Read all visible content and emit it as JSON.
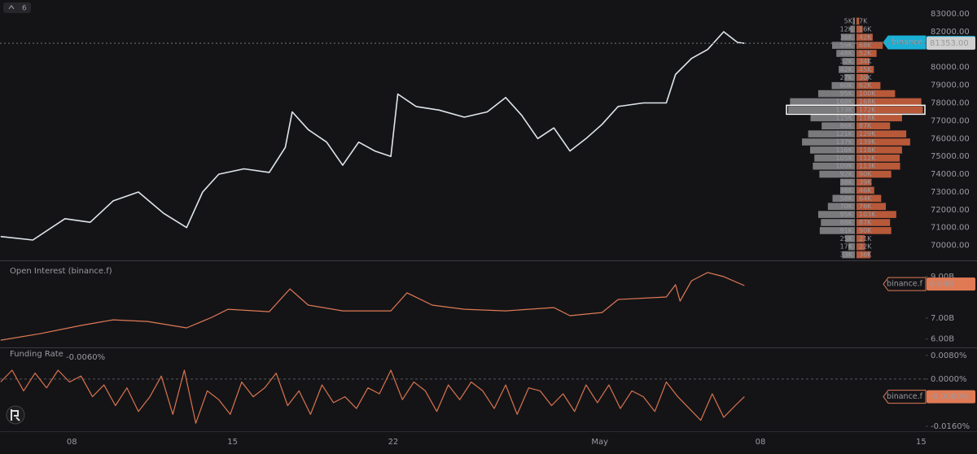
{
  "toolbar": {
    "label": "6"
  },
  "chart_data": [
    {
      "type": "line",
      "xlim": [
        3.87,
        44.2
      ],
      "ylim": [
        69160,
        83780
      ],
      "yticks": [
        {
          "value": 70000,
          "label": "70000.00"
        },
        {
          "value": 71000,
          "label": "71000.00"
        },
        {
          "value": 72000,
          "label": "72000.00"
        },
        {
          "value": 73000,
          "label": "73000.00"
        },
        {
          "value": 74000,
          "label": "74000.00"
        },
        {
          "value": 75000,
          "label": "75000.00"
        },
        {
          "value": 76000,
          "label": "76000.00"
        },
        {
          "value": 77000,
          "label": "77000.00"
        },
        {
          "value": 78000,
          "label": "78000.00"
        },
        {
          "value": 79000,
          "label": "79000.00"
        },
        {
          "value": 80000,
          "label": "80000.00"
        },
        {
          "value": 82000,
          "label": "82000.00"
        },
        {
          "value": 83000,
          "label": "83000.00"
        }
      ],
      "series": [
        {
          "name": "binance",
          "color": "#dfe6ea",
          "x": [
            3.9,
            5.3,
            6.7,
            7.8,
            8.8,
            9.9,
            11.0,
            12.0,
            12.7,
            13.4,
            14.5,
            15.6,
            16.3,
            16.6,
            17.3,
            18.1,
            18.8,
            19.5,
            20.2,
            20.9,
            21.2,
            22.0,
            23.0,
            24.1,
            25.1,
            25.9,
            26.6,
            27.3,
            28.0,
            28.7,
            29.4,
            30.1,
            30.8,
            31.9,
            32.9,
            33.3,
            34.0,
            34.7,
            35.4,
            36.0,
            36.3
          ],
          "values": [
            70500,
            70300,
            71500,
            71300,
            72500,
            73000,
            71800,
            71000,
            73000,
            74000,
            74300,
            74100,
            75500,
            77500,
            76500,
            75800,
            74500,
            75800,
            75300,
            75000,
            78500,
            77800,
            77600,
            77200,
            77500,
            78300,
            77300,
            76000,
            76600,
            75300,
            76000,
            76800,
            77800,
            78000,
            78000,
            79600,
            80500,
            81000,
            82000,
            81400,
            81350
          ]
        }
      ],
      "markers": [
        {
          "name": "binance",
          "value": 81396.33,
          "color": "#1ab0d6"
        },
        {
          "value": 81353,
          "label": "81353.00",
          "color": "#d0d0d0"
        }
      ],
      "order_book": {
        "highlight": 11,
        "bids": {
          "color": "#7a7a7c",
          "values": [
            5000,
            12000,
            36000,
            59000,
            48000,
            32000,
            42000,
            27000,
            60000,
            95000,
            168000,
            173000,
            115000,
            86000,
            121000,
            137000,
            116000,
            105000,
            109000,
            92000,
            38000,
            38000,
            58000,
            70000,
            95000,
            88000,
            91000,
            25000,
            17000,
            33000
          ],
          "value_labels": [
            "5K",
            "12K",
            "36K",
            "59K",
            "48K",
            "32K",
            "42K",
            "27K",
            "60K",
            "95K",
            "168K",
            "173K",
            "115K",
            "86K",
            "121K",
            "137K",
            "116K",
            "105K",
            "109K",
            "92K",
            "38K",
            "38K",
            "58K",
            "70K",
            "95K",
            "88K",
            "91K",
            "25K",
            "17K",
            "33K"
          ]
        },
        "asks": {
          "color": "#b8593a",
          "values": [
            7000,
            16000,
            42000,
            68000,
            52000,
            34000,
            45000,
            30000,
            62000,
            100000,
            168000,
            172000,
            118000,
            87000,
            129000,
            139000,
            118000,
            112000,
            113000,
            90000,
            39000,
            46000,
            64000,
            76000,
            103000,
            87000,
            90000,
            21000,
            22000,
            36000
          ],
          "value_labels": [
            "7K",
            "16K",
            "42K",
            "68K",
            "52K",
            "34K",
            "45K",
            "30K",
            "62K",
            "100K",
            "168K",
            "172K",
            "118K",
            "87K",
            "129K",
            "139K",
            "118K",
            "112K",
            "113K",
            "90K",
            "39K",
            "46K",
            "64K",
            "76K",
            "103K",
            "87K",
            "90K",
            "21K",
            "22K",
            "36K"
          ]
        }
      }
    },
    {
      "type": "line",
      "title": "Open Interest (binance.f)",
      "xlim": [
        3.87,
        44.2
      ],
      "ylim": [
        5.63,
        9.47
      ],
      "yticks": [
        {
          "value": 6,
          "label": "6.00B"
        },
        {
          "value": 7,
          "label": "7.00B"
        },
        {
          "value": 9,
          "label": "9.00B"
        }
      ],
      "series": [
        {
          "name": "binance.f",
          "color": "#e07a55",
          "x": [
            3.9,
            5.6,
            7.4,
            8.8,
            10.3,
            12.0,
            13.1,
            13.8,
            15.6,
            16.5,
            17.3,
            18.8,
            20.9,
            21.6,
            22.7,
            24.1,
            25.9,
            28.0,
            28.7,
            30.1,
            30.8,
            32.9,
            33.3,
            33.5,
            34.0,
            34.7,
            35.4,
            36.3
          ],
          "values": [
            5.94,
            6.25,
            6.65,
            6.92,
            6.84,
            6.53,
            7.04,
            7.43,
            7.31,
            8.41,
            7.63,
            7.35,
            7.35,
            8.22,
            7.63,
            7.43,
            7.35,
            7.51,
            7.12,
            7.27,
            7.9,
            8.02,
            8.61,
            7.82,
            8.8,
            9.2,
            9.0,
            8.57
          ]
        }
      ],
      "markers": [
        {
          "name": "binance.f",
          "value": 8.64,
          "label": "8.64B",
          "color": "#e07a55"
        }
      ]
    },
    {
      "type": "line",
      "title": "Funding Rate",
      "xlim": [
        3.87,
        44.2
      ],
      "ylim": [
        -0.0177,
        0.0099
      ],
      "yticks": [
        {
          "value": -0.016,
          "label": "-0.0160%"
        },
        {
          "value": 0,
          "label": "0.0000%"
        },
        {
          "value": 0.008,
          "label": "0.0080%"
        }
      ],
      "xticks": [
        {
          "value": 7,
          "label": "08"
        },
        {
          "value": 14,
          "label": "15"
        },
        {
          "value": 21,
          "label": "22"
        },
        {
          "value": 30,
          "label": "May"
        },
        {
          "value": 37,
          "label": "08"
        },
        {
          "value": 44,
          "label": "15"
        }
      ],
      "series": [
        {
          "name": "binance.f",
          "color": "#d9734e",
          "x": [
            3.9,
            4.4,
            4.9,
            5.4,
            5.9,
            6.4,
            6.9,
            7.4,
            7.9,
            8.4,
            8.9,
            9.4,
            9.9,
            10.4,
            10.9,
            11.4,
            11.9,
            12.4,
            12.9,
            13.4,
            13.9,
            14.4,
            14.9,
            15.4,
            15.9,
            16.4,
            16.9,
            17.4,
            17.9,
            18.4,
            18.9,
            19.4,
            19.9,
            20.4,
            20.9,
            21.4,
            21.9,
            22.4,
            22.9,
            23.4,
            23.9,
            24.4,
            24.9,
            25.4,
            25.9,
            26.4,
            26.9,
            27.4,
            27.9,
            28.4,
            28.9,
            29.4,
            29.9,
            30.4,
            30.9,
            31.4,
            31.9,
            32.4,
            32.9,
            33.4,
            33.9,
            34.4,
            34.9,
            35.4,
            35.9,
            36.3
          ],
          "values": [
            -0.001,
            0.003,
            -0.004,
            0.002,
            -0.003,
            0.003,
            -0.001,
            0.001,
            -0.006,
            -0.002,
            -0.009,
            -0.003,
            -0.011,
            -0.006,
            0.001,
            -0.012,
            0.003,
            -0.015,
            -0.004,
            -0.007,
            -0.012,
            -0.001,
            -0.006,
            -0.003,
            0.002,
            -0.009,
            -0.004,
            -0.012,
            -0.002,
            -0.008,
            -0.006,
            -0.01,
            -0.003,
            -0.005,
            0.003,
            -0.007,
            -0.001,
            -0.004,
            -0.011,
            -0.002,
            -0.007,
            -0.001,
            -0.004,
            -0.01,
            -0.002,
            -0.012,
            -0.003,
            -0.004,
            -0.009,
            -0.005,
            -0.011,
            -0.002,
            -0.008,
            -0.002,
            -0.01,
            -0.004,
            -0.006,
            -0.011,
            -0.001,
            -0.006,
            -0.01,
            -0.014,
            -0.005,
            -0.013,
            -0.009,
            -0.006
          ]
        }
      ],
      "markers": [
        {
          "name": "binance.f",
          "value": -0.006,
          "label": "-0.0060%",
          "color": "#e07a55"
        }
      ]
    }
  ]
}
